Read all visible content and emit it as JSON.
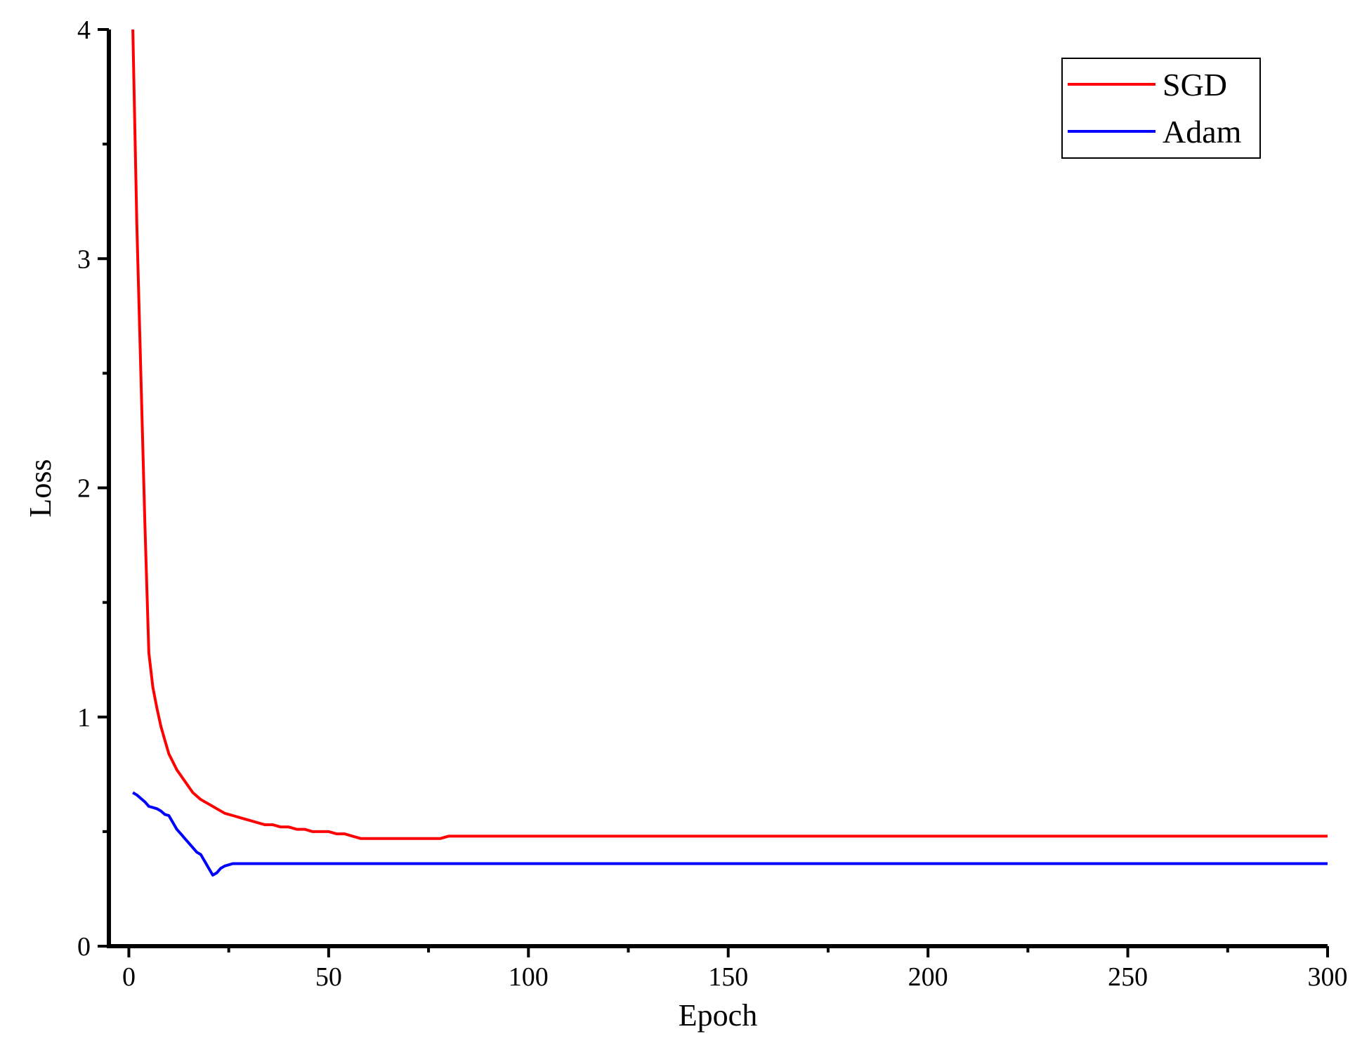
{
  "chart_data": {
    "type": "line",
    "title": "",
    "xlabel": "Epoch",
    "ylabel": "Loss",
    "xlim": [
      -5,
      300
    ],
    "ylim": [
      0,
      4
    ],
    "xticks": [
      0,
      50,
      100,
      150,
      200,
      250,
      300
    ],
    "xtick_labels": [
      "0",
      "50",
      "100",
      "150",
      "200",
      "250",
      "300"
    ],
    "xminor": [
      25,
      75,
      125,
      175,
      225,
      275
    ],
    "yticks": [
      0,
      1,
      2,
      3,
      4
    ],
    "ytick_labels": [
      "0",
      "1",
      "2",
      "3",
      "4"
    ],
    "yminor": [
      0.5,
      1.5,
      2.5,
      3.5
    ],
    "grid": false,
    "legend_position": "top-right",
    "series": [
      {
        "name": "SGD",
        "color": "#ff0000",
        "x": [
          1,
          2,
          3,
          4,
          5,
          6,
          7,
          8,
          9,
          10,
          12,
          14,
          16,
          18,
          20,
          22,
          24,
          26,
          28,
          30,
          32,
          34,
          36,
          38,
          40,
          42,
          44,
          46,
          48,
          50,
          52,
          54,
          56,
          58,
          60,
          62,
          65,
          68,
          70,
          72,
          75,
          78,
          80,
          85,
          90,
          100,
          150,
          200,
          250,
          300
        ],
        "y": [
          4.0,
          3.15,
          2.5,
          1.85,
          1.28,
          1.13,
          1.04,
          0.96,
          0.9,
          0.84,
          0.77,
          0.72,
          0.67,
          0.64,
          0.62,
          0.6,
          0.58,
          0.57,
          0.56,
          0.55,
          0.54,
          0.53,
          0.53,
          0.52,
          0.52,
          0.51,
          0.51,
          0.5,
          0.5,
          0.5,
          0.49,
          0.49,
          0.48,
          0.47,
          0.47,
          0.47,
          0.47,
          0.47,
          0.47,
          0.47,
          0.47,
          0.47,
          0.48,
          0.48,
          0.48,
          0.48,
          0.48,
          0.48,
          0.48,
          0.48
        ]
      },
      {
        "name": "Adam",
        "color": "#0000ff",
        "x": [
          1,
          2,
          3,
          4,
          5,
          6,
          7,
          8,
          9,
          10,
          11,
          12,
          13,
          14,
          15,
          16,
          17,
          18,
          19,
          20,
          21,
          22,
          23,
          24,
          25,
          26,
          28,
          30,
          35,
          40,
          50,
          100,
          150,
          200,
          250,
          300
        ],
        "y": [
          0.67,
          0.66,
          0.645,
          0.63,
          0.61,
          0.605,
          0.6,
          0.59,
          0.575,
          0.57,
          0.54,
          0.51,
          0.49,
          0.47,
          0.45,
          0.43,
          0.41,
          0.4,
          0.37,
          0.34,
          0.31,
          0.32,
          0.34,
          0.35,
          0.355,
          0.36,
          0.36,
          0.36,
          0.36,
          0.36,
          0.36,
          0.36,
          0.36,
          0.36,
          0.36,
          0.36
        ]
      }
    ]
  }
}
